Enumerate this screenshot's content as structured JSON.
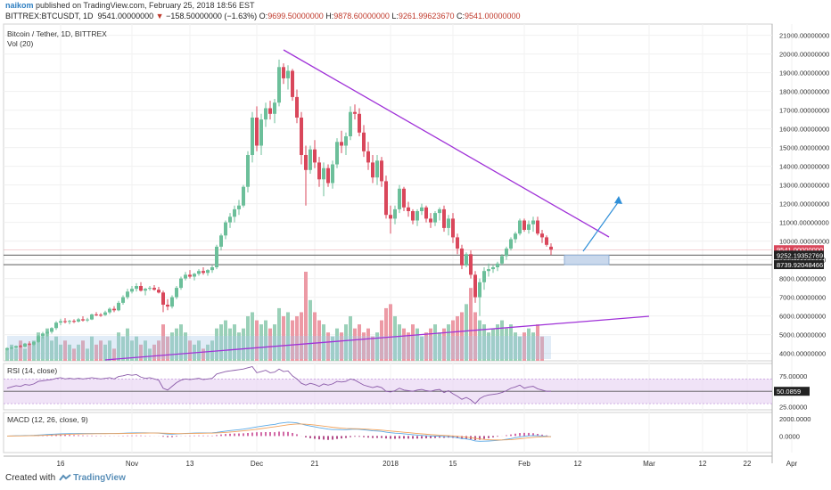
{
  "header": {
    "user": "naikom",
    "published": "published on TradingView.com, February 25, 2018 18:56 EST",
    "symbol": "BITTREX:BTCUSDT, 1D",
    "last": "9541.00000000",
    "change": "−158.50000000 (−1.63%)",
    "o_label": "O:",
    "o": "9699.50000000",
    "h_label": "H:",
    "h": "9878.60000000",
    "l_label": "L:",
    "l": "9261.99623670",
    "c_label": "C:",
    "c": "9541.00000000"
  },
  "footer": {
    "created_with": "Created with",
    "brand": "TradingView"
  },
  "colors": {
    "up": "#6cbf9a",
    "down": "#d9475b",
    "volume_up": "#9ad0b8",
    "volume_down": "#ec9aa5",
    "trendline": "#a032d8",
    "projection": "#2f8fd8",
    "rsi_band": "#e9d7f3",
    "macd_line": "#5aa9e6",
    "signal_line": "#f2a35c"
  },
  "chart_data": [
    {
      "type": "candlestick",
      "title": "Bitcoin / Tether, 1D, BITTREX",
      "volume_label": "Vol (20)",
      "ylim": [
        3600,
        21600
      ],
      "y_ticks": [
        {
          "v": 4000,
          "label": "4000.00000000"
        },
        {
          "v": 5000,
          "label": "5000.00000000"
        },
        {
          "v": 6000,
          "label": "6000.00000000"
        },
        {
          "v": 7000,
          "label": "7000.00000000"
        },
        {
          "v": 8000,
          "label": "8000.00000000"
        },
        {
          "v": 9000,
          "label": "9000.00000000"
        },
        {
          "v": 10000,
          "label": "10000.00000000"
        },
        {
          "v": 11000,
          "label": "11000.00000000"
        },
        {
          "v": 12000,
          "label": "12000.00000000"
        },
        {
          "v": 13000,
          "label": "13000.00000000"
        },
        {
          "v": 14000,
          "label": "14000.00000000"
        },
        {
          "v": 15000,
          "label": "15000.00000000"
        },
        {
          "v": 16000,
          "label": "16000.00000000"
        },
        {
          "v": 17000,
          "label": "17000.00000000"
        },
        {
          "v": 18000,
          "label": "18000.00000000"
        },
        {
          "v": 19000,
          "label": "19000.00000000"
        },
        {
          "v": 20000,
          "label": "20000.00000000"
        },
        {
          "v": 21000,
          "label": "21000.00000000"
        }
      ],
      "price_labels": [
        {
          "v": 9541,
          "label": "9541.00000000",
          "color": "#d9475b"
        },
        {
          "v": 9252.19,
          "label": "9252.19352769",
          "color": "#222222"
        },
        {
          "v": 8739.92,
          "label": "8739.92048466",
          "color": "#222222"
        }
      ],
      "horizontal_levels": [
        9252.19,
        8739.92
      ],
      "x_ticks": [
        {
          "i": 12,
          "label": "16"
        },
        {
          "i": 28,
          "label": "Nov"
        },
        {
          "i": 41,
          "label": "13"
        },
        {
          "i": 56,
          "label": "Dec"
        },
        {
          "i": 69,
          "label": "21"
        },
        {
          "i": 86,
          "label": "2018"
        },
        {
          "i": 100,
          "label": "15"
        },
        {
          "i": 116,
          "label": "Feb"
        },
        {
          "i": 128,
          "label": "12"
        },
        {
          "i": 144,
          "label": "Mar"
        },
        {
          "i": 156,
          "label": "12"
        },
        {
          "i": 166,
          "label": "22"
        },
        {
          "i": 176,
          "label": "Apr"
        }
      ],
      "candles": [
        [
          4200,
          4320,
          4150,
          4280
        ],
        [
          4280,
          4380,
          4220,
          4300
        ],
        [
          4300,
          4420,
          4260,
          4390
        ],
        [
          4390,
          4450,
          4300,
          4350
        ],
        [
          4350,
          4560,
          4320,
          4520
        ],
        [
          4520,
          4640,
          4430,
          4470
        ],
        [
          4470,
          4650,
          4400,
          4610
        ],
        [
          4610,
          4980,
          4560,
          4920
        ],
        [
          4920,
          5150,
          4800,
          5060
        ],
        [
          5060,
          5280,
          4900,
          5150
        ],
        [
          5150,
          5400,
          5050,
          5350
        ],
        [
          5350,
          5720,
          5250,
          5640
        ],
        [
          5640,
          5850,
          5500,
          5720
        ],
        [
          5720,
          5880,
          5600,
          5680
        ],
        [
          5680,
          5790,
          5550,
          5730
        ],
        [
          5730,
          5820,
          5620,
          5700
        ],
        [
          5700,
          5890,
          5650,
          5820
        ],
        [
          5820,
          5980,
          5700,
          5760
        ],
        [
          5760,
          5900,
          5680,
          5810
        ],
        [
          5810,
          6120,
          5780,
          6080
        ],
        [
          6080,
          6200,
          5990,
          6060
        ],
        [
          6060,
          6150,
          5950,
          6050
        ],
        [
          6050,
          6280,
          6000,
          6190
        ],
        [
          6190,
          6450,
          6100,
          6380
        ],
        [
          6380,
          6520,
          6200,
          6300
        ],
        [
          6300,
          6800,
          6250,
          6700
        ],
        [
          6700,
          7100,
          6600,
          7000
        ],
        [
          7000,
          7450,
          6900,
          7300
        ],
        [
          7300,
          7600,
          7200,
          7450
        ],
        [
          7450,
          7750,
          7300,
          7600
        ],
        [
          7600,
          7800,
          7300,
          7350
        ],
        [
          7350,
          7500,
          7100,
          7450
        ],
        [
          7450,
          7600,
          7350,
          7500
        ],
        [
          7500,
          7650,
          7350,
          7400
        ],
        [
          7400,
          7550,
          7200,
          7250
        ],
        [
          7250,
          7350,
          6200,
          6600
        ],
        [
          6600,
          6900,
          6300,
          6500
        ],
        [
          6500,
          7100,
          6400,
          7000
        ],
        [
          7000,
          7600,
          6900,
          7500
        ],
        [
          7500,
          8100,
          7400,
          8000
        ],
        [
          8000,
          8350,
          7900,
          8200
        ],
        [
          8200,
          8450,
          8000,
          8100
        ],
        [
          8100,
          8300,
          7900,
          8250
        ],
        [
          8250,
          8500,
          8150,
          8400
        ],
        [
          8400,
          8600,
          8200,
          8300
        ],
        [
          8300,
          8500,
          8150,
          8450
        ],
        [
          8450,
          8700,
          8300,
          8600
        ],
        [
          8600,
          9800,
          8500,
          9700
        ],
        [
          9700,
          10400,
          9500,
          10300
        ],
        [
          10300,
          11100,
          10100,
          11000
        ],
        [
          11000,
          11500,
          10700,
          11300
        ],
        [
          11300,
          11900,
          11000,
          11700
        ],
        [
          11700,
          12200,
          11400,
          11900
        ],
        [
          11900,
          13000,
          11800,
          12900
        ],
        [
          12900,
          14800,
          12600,
          14600
        ],
        [
          14600,
          16900,
          14200,
          16600
        ],
        [
          16600,
          17200,
          14800,
          15100
        ],
        [
          15100,
          16800,
          14600,
          16500
        ],
        [
          16500,
          17400,
          16100,
          17100
        ],
        [
          17100,
          17500,
          16500,
          16800
        ],
        [
          16800,
          17600,
          16300,
          17400
        ],
        [
          17400,
          19700,
          17200,
          19300
        ],
        [
          19300,
          19500,
          18400,
          18700
        ],
        [
          18700,
          19400,
          18100,
          19100
        ],
        [
          19100,
          19200,
          17500,
          17700
        ],
        [
          17700,
          18100,
          16300,
          16600
        ],
        [
          16600,
          16900,
          14100,
          14600
        ],
        [
          14600,
          15100,
          11900,
          13800
        ],
        [
          13800,
          15100,
          13600,
          14900
        ],
        [
          14900,
          15400,
          13900,
          14200
        ],
        [
          14200,
          14500,
          12900,
          13300
        ],
        [
          13300,
          14200,
          12400,
          13900
        ],
        [
          13900,
          14100,
          12900,
          13100
        ],
        [
          13100,
          14300,
          12800,
          14100
        ],
        [
          14100,
          15500,
          13900,
          15300
        ],
        [
          15300,
          15900,
          14700,
          15100
        ],
        [
          15100,
          15800,
          14600,
          15600
        ],
        [
          15600,
          17200,
          15400,
          16900
        ],
        [
          16900,
          17300,
          16500,
          16800
        ],
        [
          16800,
          17100,
          15600,
          15800
        ],
        [
          15800,
          16200,
          14500,
          14800
        ],
        [
          14800,
          15300,
          13800,
          14200
        ],
        [
          14200,
          14600,
          13100,
          13400
        ],
        [
          13400,
          14600,
          13000,
          14300
        ],
        [
          14300,
          14500,
          12900,
          13200
        ],
        [
          13200,
          13500,
          11200,
          11400
        ],
        [
          11400,
          11900,
          10400,
          11200
        ],
        [
          11200,
          11900,
          10900,
          11700
        ],
        [
          11700,
          13000,
          11500,
          12800
        ],
        [
          12800,
          12900,
          11600,
          11800
        ],
        [
          11800,
          12100,
          11300,
          11600
        ],
        [
          11600,
          11700,
          10900,
          11100
        ],
        [
          11100,
          11700,
          10800,
          11600
        ],
        [
          11600,
          12000,
          11400,
          11800
        ],
        [
          11800,
          11900,
          11000,
          11200
        ],
        [
          11200,
          11500,
          10700,
          11000
        ],
        [
          11000,
          11600,
          10800,
          11500
        ],
        [
          11500,
          11800,
          11100,
          11700
        ],
        [
          11700,
          11900,
          10500,
          10700
        ],
        [
          10700,
          11400,
          10300,
          11200
        ],
        [
          11200,
          11500,
          9900,
          10200
        ],
        [
          10200,
          10400,
          9300,
          9600
        ],
        [
          9600,
          9800,
          8500,
          8700
        ],
        [
          8700,
          9400,
          8600,
          9300
        ],
        [
          9300,
          9500,
          8000,
          8200
        ],
        [
          8200,
          8400,
          6700,
          7000
        ],
        [
          7000,
          8000,
          6000,
          7800
        ],
        [
          7800,
          8600,
          7400,
          8400
        ],
        [
          8400,
          8800,
          8100,
          8500
        ],
        [
          8500,
          8700,
          8300,
          8600
        ],
        [
          8600,
          8900,
          8400,
          8800
        ],
        [
          8800,
          9300,
          8700,
          9200
        ],
        [
          9200,
          9700,
          9000,
          9600
        ],
        [
          9600,
          10200,
          9500,
          10100
        ],
        [
          10100,
          10500,
          9900,
          10400
        ],
        [
          10400,
          11200,
          10300,
          11100
        ],
        [
          11100,
          11200,
          10500,
          10600
        ],
        [
          10600,
          11100,
          10400,
          10900
        ],
        [
          10900,
          11300,
          10500,
          11100
        ],
        [
          11100,
          11300,
          10300,
          10400
        ],
        [
          10400,
          10600,
          9900,
          10200
        ],
        [
          10200,
          10300,
          9700,
          9800
        ],
        [
          9699.5,
          9878.6,
          9261.99,
          9541
        ]
      ],
      "volume": [
        3,
        4,
        3,
        5,
        3,
        4,
        5,
        7,
        6,
        8,
        5,
        6,
        4,
        5,
        4,
        3,
        4,
        5,
        3,
        6,
        4,
        5,
        4,
        5,
        3,
        7,
        6,
        8,
        5,
        6,
        4,
        5,
        3,
        4,
        5,
        9,
        6,
        7,
        8,
        9,
        7,
        5,
        4,
        5,
        3,
        4,
        5,
        8,
        9,
        10,
        8,
        9,
        7,
        8,
        11,
        12,
        10,
        9,
        10,
        8,
        9,
        13,
        11,
        12,
        10,
        11,
        12,
        22,
        15,
        12,
        10,
        9,
        7,
        6,
        8,
        7,
        9,
        11,
        8,
        9,
        7,
        8,
        6,
        7,
        10,
        13,
        14,
        11,
        9,
        8,
        7,
        9,
        8,
        6,
        7,
        8,
        9,
        7,
        8,
        9,
        10,
        11,
        12,
        14,
        18,
        12,
        10,
        9,
        7,
        8,
        9,
        10,
        8,
        9,
        7,
        6,
        7,
        8,
        7,
        9,
        6
      ]
    },
    {
      "type": "line",
      "title": "RSI (14, close)",
      "value_label": "50.0859",
      "y_ticks": [
        {
          "v": 75,
          "label": "75.00000"
        },
        {
          "v": 25,
          "label": "25.00000"
        }
      ],
      "band": [
        30,
        70
      ],
      "ylim": [
        20,
        95
      ],
      "values": [
        55,
        57,
        59,
        58,
        61,
        60,
        62,
        66,
        67,
        68,
        69,
        71,
        72,
        70,
        71,
        70,
        71,
        70,
        71,
        72,
        71,
        70,
        71,
        72,
        70,
        74,
        75,
        77,
        76,
        77,
        73,
        71,
        72,
        70,
        68,
        55,
        52,
        58,
        64,
        68,
        70,
        69,
        70,
        71,
        69,
        70,
        71,
        78,
        80,
        82,
        83,
        84,
        85,
        86,
        88,
        90,
        80,
        82,
        84,
        80,
        81,
        86,
        82,
        83,
        75,
        70,
        63,
        60,
        63,
        61,
        58,
        62,
        60,
        62,
        66,
        65,
        66,
        70,
        68,
        64,
        60,
        58,
        56,
        58,
        56,
        50,
        49,
        51,
        55,
        52,
        51,
        50,
        52,
        53,
        51,
        50,
        52,
        53,
        48,
        51,
        46,
        42,
        37,
        40,
        36,
        30,
        38,
        42,
        44,
        45,
        46,
        48,
        51,
        55,
        57,
        60,
        55,
        57,
        58,
        54,
        52,
        50,
        50.09
      ]
    },
    {
      "type": "line",
      "title": "MACD (12, 26, close, 9)",
      "y_ticks": [
        {
          "v": 2000,
          "label": "2000.0000"
        },
        {
          "v": 0,
          "label": "0.0000"
        }
      ],
      "ylim": [
        -1900,
        2700
      ],
      "macd": [
        0,
        15,
        30,
        40,
        55,
        65,
        80,
        110,
        140,
        170,
        195,
        225,
        250,
        265,
        275,
        280,
        285,
        285,
        285,
        290,
        290,
        288,
        290,
        295,
        290,
        300,
        315,
        335,
        350,
        365,
        370,
        365,
        360,
        350,
        335,
        280,
        230,
        220,
        240,
        270,
        300,
        320,
        335,
        350,
        355,
        360,
        365,
        420,
        490,
        560,
        620,
        680,
        730,
        790,
        870,
        960,
        1050,
        1120,
        1200,
        1270,
        1330,
        1450,
        1520,
        1580,
        1560,
        1500,
        1380,
        1250,
        1150,
        1060,
        960,
        880,
        790,
        740,
        740,
        730,
        730,
        770,
        790,
        770,
        720,
        660,
        600,
        570,
        530,
        450,
        380,
        330,
        300,
        250,
        200,
        150,
        110,
        70,
        40,
        10,
        -10,
        -20,
        -60,
        -70,
        -120,
        -190,
        -290,
        -340,
        -420,
        -560,
        -600,
        -590,
        -570,
        -540,
        -500,
        -450,
        -380,
        -300,
        -200,
        -100,
        -30,
        20,
        50,
        40,
        10,
        -30,
        -80
      ]
    }
  ]
}
